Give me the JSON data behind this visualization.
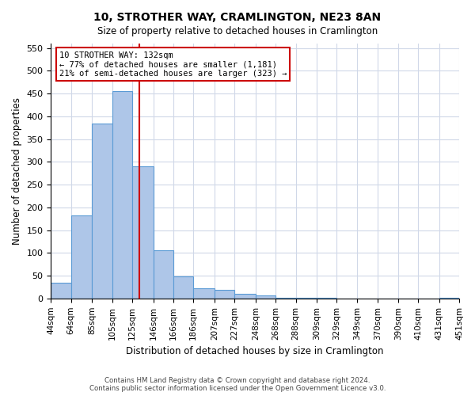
{
  "title": "10, STROTHER WAY, CRAMLINGTON, NE23 8AN",
  "subtitle": "Size of property relative to detached houses in Cramlington",
  "xlabel": "Distribution of detached houses by size in Cramlington",
  "ylabel": "Number of detached properties",
  "bin_edges": [
    44,
    64,
    85,
    105,
    125,
    146,
    166,
    186,
    207,
    227,
    248,
    268,
    288,
    309,
    329,
    349,
    370,
    390,
    410,
    431,
    451
  ],
  "bin_labels": [
    "44sqm",
    "64sqm",
    "85sqm",
    "105sqm",
    "125sqm",
    "146sqm",
    "166sqm",
    "186sqm",
    "207sqm",
    "227sqm",
    "248sqm",
    "268sqm",
    "288sqm",
    "309sqm",
    "329sqm",
    "349sqm",
    "370sqm",
    "390sqm",
    "410sqm",
    "431sqm",
    "451sqm"
  ],
  "counts": [
    35,
    182,
    385,
    455,
    290,
    105,
    48,
    22,
    18,
    10,
    6,
    2,
    1,
    1,
    0,
    0,
    0,
    0,
    0,
    2
  ],
  "bar_color": "#aec6e8",
  "bar_edge_color": "#5b9bd5",
  "property_line_x": 132,
  "property_line_color": "#cc0000",
  "annotation_box_color": "#cc0000",
  "annotation_lines": [
    "10 STROTHER WAY: 132sqm",
    "← 77% of detached houses are smaller (1,181)",
    "21% of semi-detached houses are larger (323) →"
  ],
  "ylim": [
    0,
    560
  ],
  "yticks": [
    0,
    50,
    100,
    150,
    200,
    250,
    300,
    350,
    400,
    450,
    500,
    550
  ],
  "footer_lines": [
    "Contains HM Land Registry data © Crown copyright and database right 2024.",
    "Contains public sector information licensed under the Open Government Licence v3.0."
  ],
  "background_color": "#ffffff",
  "grid_color": "#d0d8e8"
}
